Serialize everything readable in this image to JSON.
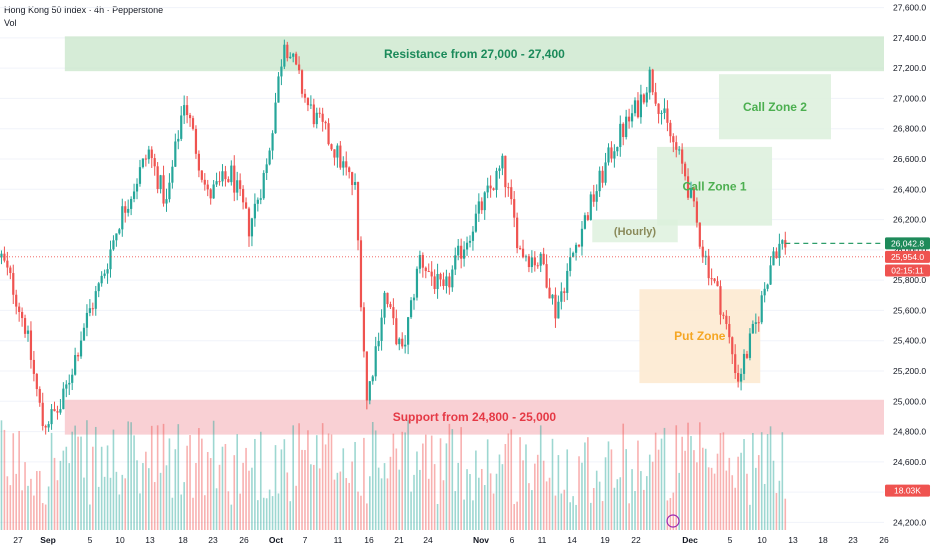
{
  "header": {
    "title": "Hong Kong 50 Index · 4h · Pepperstone",
    "volume_label": "Vol"
  },
  "colors": {
    "up": "#26a69a",
    "down": "#ef5350",
    "resistance": "#c8e6c9",
    "support": "#f8c8cc",
    "call": "#dcf0dc",
    "put": "#fde9cf",
    "resistance_text": "#1b8a5a",
    "support_text": "#e53945",
    "call_text": "#4caf50",
    "put_text": "#f5a623"
  },
  "chart_data": {
    "type": "candlestick",
    "y_axis": {
      "min": 24150,
      "max": 27650,
      "ticks": [
        "27,600.0",
        "27,400.0",
        "27,200.0",
        "27,000.0",
        "26,800.0",
        "26,600.0",
        "26,400.0",
        "26,200.0",
        "26,000.0",
        "25,800.0",
        "25,600.0",
        "25,400.0",
        "25,200.0",
        "25,000.0",
        "24,800.0",
        "24,600.0",
        "24,400.0",
        "24,200.0"
      ]
    },
    "x_axis": {
      "ticks": [
        {
          "label": "27",
          "bold": false
        },
        {
          "label": "Sep",
          "bold": true
        },
        {
          "label": "5",
          "bold": false
        },
        {
          "label": "10",
          "bold": false
        },
        {
          "label": "13",
          "bold": false
        },
        {
          "label": "18",
          "bold": false
        },
        {
          "label": "23",
          "bold": false
        },
        {
          "label": "26",
          "bold": false
        },
        {
          "label": "Oct",
          "bold": true
        },
        {
          "label": "7",
          "bold": false
        },
        {
          "label": "11",
          "bold": false
        },
        {
          "label": "16",
          "bold": false
        },
        {
          "label": "21",
          "bold": false
        },
        {
          "label": "24",
          "bold": false
        },
        {
          "label": "Nov",
          "bold": true
        },
        {
          "label": "6",
          "bold": false
        },
        {
          "label": "11",
          "bold": false
        },
        {
          "label": "14",
          "bold": false
        },
        {
          "label": "19",
          "bold": false
        },
        {
          "label": "22",
          "bold": false
        },
        {
          "label": "Dec",
          "bold": true
        },
        {
          "label": "5",
          "bold": false
        },
        {
          "label": "10",
          "bold": false
        },
        {
          "label": "13",
          "bold": false
        },
        {
          "label": "18",
          "bold": false
        },
        {
          "label": "23",
          "bold": false
        },
        {
          "label": "26",
          "bold": false
        }
      ]
    },
    "price_path": [
      [
        25950,
        0
      ],
      [
        25750,
        4
      ],
      [
        25500,
        8
      ],
      [
        24850,
        14
      ],
      [
        24950,
        20
      ],
      [
        25500,
        28
      ],
      [
        25800,
        34
      ],
      [
        26200,
        40
      ],
      [
        26650,
        50
      ],
      [
        26300,
        56
      ],
      [
        27000,
        62
      ],
      [
        26350,
        70
      ],
      [
        26500,
        78
      ],
      [
        26150,
        84
      ],
      [
        26550,
        90
      ],
      [
        27400,
        96
      ],
      [
        26950,
        104
      ],
      [
        26700,
        112
      ],
      [
        26400,
        120
      ],
      [
        25000,
        124
      ],
      [
        25700,
        130
      ],
      [
        25300,
        136
      ],
      [
        25950,
        142
      ],
      [
        25700,
        150
      ],
      [
        26000,
        156
      ],
      [
        26250,
        162
      ],
      [
        26550,
        170
      ],
      [
        26000,
        176
      ],
      [
        25900,
        184
      ],
      [
        25600,
        188
      ],
      [
        26100,
        196
      ],
      [
        26400,
        202
      ],
      [
        26700,
        208
      ],
      [
        26950,
        216
      ],
      [
        27150,
        220
      ],
      [
        26800,
        226
      ],
      [
        26500,
        232
      ],
      [
        26000,
        238
      ],
      [
        25650,
        244
      ],
      [
        25150,
        250
      ],
      [
        25500,
        256
      ],
      [
        26000,
        262
      ],
      [
        26050,
        266
      ]
    ],
    "last_close": 25954.0,
    "zones": [
      {
        "name": "Resistance from 27,000 - 27,400",
        "low": 27180,
        "high": 27410
      },
      {
        "name": "Support from 24,800 - 25,000",
        "low": 24780,
        "high": 25010
      },
      {
        "name": "Call Zone 1",
        "low": 26160,
        "high": 26680
      },
      {
        "name": "Call Zone 2",
        "low": 26730,
        "high": 27160
      },
      {
        "name": "Put Zone",
        "low": 25120,
        "high": 25740
      },
      {
        "name": "(Hourly)",
        "low": 26050,
        "high": 26200
      }
    ],
    "dashed_level": 26042.8,
    "price_labels": [
      {
        "text": "26,042.8",
        "kind": "level"
      },
      {
        "text": "25,954.0",
        "kind": "last"
      },
      {
        "text": "02:15:11",
        "kind": "countdown"
      },
      {
        "text": "18.03K",
        "kind": "volume"
      }
    ]
  }
}
